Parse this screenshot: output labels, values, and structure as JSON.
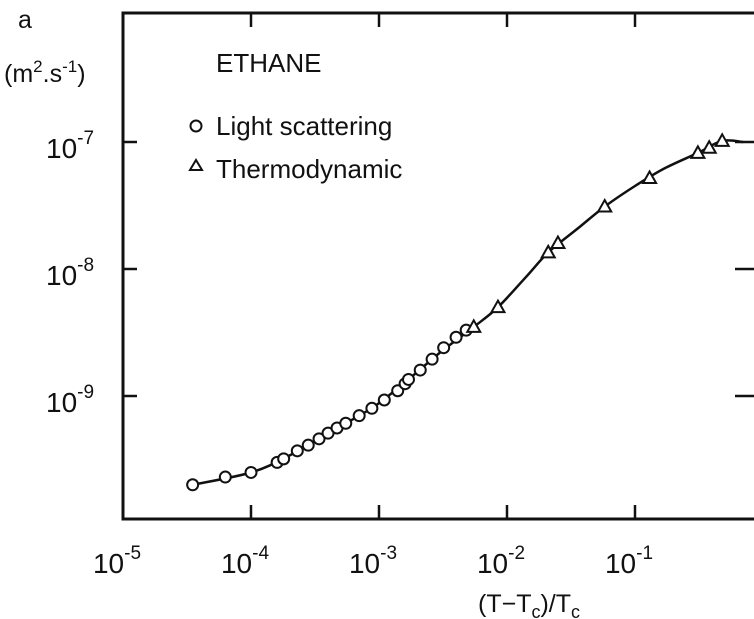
{
  "chart_data": {
    "type": "scatter",
    "title": "ETHANE",
    "xlabel": "(T-Tc)/Tc",
    "ylabel": "a (m2.s-1)",
    "x_scale": "log",
    "y_scale": "log",
    "xlim": [
      1e-05,
      0.7
    ],
    "ylim": [
      1e-10,
      2.5e-07
    ],
    "x_ticks": [
      {
        "base": "10",
        "exp": "-5",
        "value": 1e-05
      },
      {
        "base": "10",
        "exp": "-4",
        "value": 0.0001
      },
      {
        "base": "10",
        "exp": "-3",
        "value": 0.001
      },
      {
        "base": "10",
        "exp": "-2",
        "value": 0.01
      },
      {
        "base": "10",
        "exp": "-1",
        "value": 0.1
      }
    ],
    "y_ticks": [
      {
        "base": "10",
        "exp": "-7",
        "value": 1e-07
      },
      {
        "base": "10",
        "exp": "-8",
        "value": 1e-08
      },
      {
        "base": "10",
        "exp": "-9",
        "value": 1e-09
      }
    ],
    "grid": false,
    "legend_position": "top-left",
    "series": [
      {
        "name": "Light scattering",
        "marker": "circle",
        "points": [
          {
            "x": 3.5e-05,
            "y": 2e-10
          },
          {
            "x": 6.3e-05,
            "y": 2.3e-10
          },
          {
            "x": 0.0001,
            "y": 2.5e-10
          },
          {
            "x": 0.00016,
            "y": 3e-10
          },
          {
            "x": 0.00018,
            "y": 3.2e-10
          },
          {
            "x": 0.00023,
            "y": 3.7e-10
          },
          {
            "x": 0.00028,
            "y": 4.1e-10
          },
          {
            "x": 0.00034,
            "y": 4.6e-10
          },
          {
            "x": 0.0004,
            "y": 5.1e-10
          },
          {
            "x": 0.00047,
            "y": 5.6e-10
          },
          {
            "x": 0.00055,
            "y": 6.1e-10
          },
          {
            "x": 0.0007,
            "y": 7e-10
          },
          {
            "x": 0.00088,
            "y": 8e-10
          },
          {
            "x": 0.0011,
            "y": 9.3e-10
          },
          {
            "x": 0.0014,
            "y": 1.1e-09
          },
          {
            "x": 0.0016,
            "y": 1.25e-09
          },
          {
            "x": 0.0017,
            "y": 1.35e-09
          },
          {
            "x": 0.0021,
            "y": 1.6e-09
          },
          {
            "x": 0.0026,
            "y": 1.95e-09
          },
          {
            "x": 0.0032,
            "y": 2.4e-09
          },
          {
            "x": 0.004,
            "y": 2.9e-09
          },
          {
            "x": 0.0048,
            "y": 3.3e-09
          }
        ]
      },
      {
        "name": "Thermodynamic",
        "marker": "triangle",
        "points": [
          {
            "x": 0.0055,
            "y": 3.5e-09
          },
          {
            "x": 0.0085,
            "y": 5e-09
          },
          {
            "x": 0.021,
            "y": 1.35e-08
          },
          {
            "x": 0.025,
            "y": 1.6e-08
          },
          {
            "x": 0.058,
            "y": 3.1e-08
          },
          {
            "x": 0.13,
            "y": 5.2e-08
          },
          {
            "x": 0.31,
            "y": 8.2e-08
          },
          {
            "x": 0.38,
            "y": 9e-08
          },
          {
            "x": 0.48,
            "y": 1.02e-07
          }
        ]
      }
    ],
    "fit_curve": [
      {
        "x": 3.5e-05,
        "y": 2e-10
      },
      {
        "x": 0.0001,
        "y": 2.5e-10
      },
      {
        "x": 0.0002,
        "y": 3.4e-10
      },
      {
        "x": 0.0004,
        "y": 5.1e-10
      },
      {
        "x": 0.0007,
        "y": 7e-10
      },
      {
        "x": 0.001,
        "y": 8.8e-10
      },
      {
        "x": 0.0017,
        "y": 1.35e-09
      },
      {
        "x": 0.003,
        "y": 2.2e-09
      },
      {
        "x": 0.0055,
        "y": 3.5e-09
      },
      {
        "x": 0.0085,
        "y": 5e-09
      },
      {
        "x": 0.014,
        "y": 8.6e-09
      },
      {
        "x": 0.021,
        "y": 1.35e-08
      },
      {
        "x": 0.035,
        "y": 2.05e-08
      },
      {
        "x": 0.058,
        "y": 3.1e-08
      },
      {
        "x": 0.1,
        "y": 4.5e-08
      },
      {
        "x": 0.17,
        "y": 6.2e-08
      },
      {
        "x": 0.31,
        "y": 8.2e-08
      },
      {
        "x": 0.48,
        "y": 1.02e-07
      },
      {
        "x": 0.7,
        "y": 1e-07
      }
    ],
    "legend": {
      "heading": "ETHANE",
      "items": [
        {
          "label": "Light scattering",
          "marker": "circle"
        },
        {
          "label": "Thermodynamic",
          "marker": "triangle"
        }
      ]
    },
    "ylabel_lines": {
      "line1": "a",
      "m": "(m",
      "two": "2",
      "dot_s": ".s",
      "neg1": "-1",
      "close": ")"
    },
    "xlabel_parts": {
      "open": "(T",
      "dash1": "−T",
      "c1": "c",
      "mid": ")/T",
      "c2": "c"
    }
  },
  "colors": {
    "ink": "#111111",
    "background": "#ffffff"
  }
}
